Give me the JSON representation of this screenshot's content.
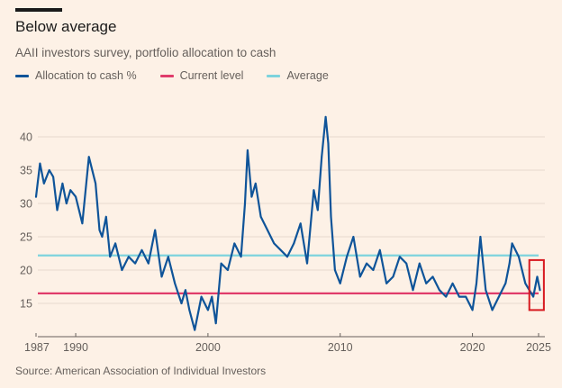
{
  "title": "Below average",
  "subtitle": "AAII investors survey, portfolio allocation to cash",
  "legend": [
    {
      "label": "Allocation to cash %",
      "color": "#0f5499"
    },
    {
      "label": "Current level",
      "color": "#e03c6b"
    },
    {
      "label": "Average",
      "color": "#7dd3dd"
    }
  ],
  "source": "Source: American Association of Individual Investors",
  "chart_data": {
    "type": "line",
    "title": "Below average",
    "xlabel": "",
    "ylabel": "",
    "xlim": [
      1987,
      2025
    ],
    "ylim": [
      10,
      45
    ],
    "yticks": [
      15,
      20,
      25,
      30,
      35,
      40
    ],
    "xticks": [
      {
        "value": 1987,
        "label": "1987"
      },
      {
        "value": 1990,
        "label": "1990"
      },
      {
        "value": 2000,
        "label": "2000"
      },
      {
        "value": 2010,
        "label": "2010"
      },
      {
        "value": 2020,
        "label": "2020"
      },
      {
        "value": 2025,
        "label": "2025"
      }
    ],
    "reference_lines": [
      {
        "name": "Current level",
        "value": 16.5,
        "color": "#e03c6b"
      },
      {
        "name": "Average",
        "value": 22.2,
        "color": "#7dd3dd"
      }
    ],
    "highlight_box": {
      "x_start": 2024.3,
      "x_end": 2025.4,
      "y_start": 14,
      "y_end": 21.5,
      "color": "#d71920"
    },
    "series": [
      {
        "name": "Allocation to cash %",
        "color": "#0f5499",
        "x": [
          1987.0,
          1987.3,
          1987.6,
          1988.0,
          1988.3,
          1988.6,
          1989.0,
          1989.3,
          1989.6,
          1990.0,
          1990.5,
          1991.0,
          1991.5,
          1991.8,
          1992.0,
          1992.3,
          1992.6,
          1993.0,
          1993.5,
          1994.0,
          1994.5,
          1995.0,
          1995.5,
          1996.0,
          1996.5,
          1997.0,
          1997.5,
          1998.0,
          1998.3,
          1998.6,
          1999.0,
          1999.5,
          2000.0,
          2000.3,
          2000.6,
          2001.0,
          2001.5,
          2002.0,
          2002.5,
          2002.8,
          2003.0,
          2003.3,
          2003.6,
          2004.0,
          2004.5,
          2005.0,
          2005.5,
          2006.0,
          2006.5,
          2007.0,
          2007.5,
          2008.0,
          2008.3,
          2008.6,
          2008.9,
          2009.1,
          2009.3,
          2009.6,
          2010.0,
          2010.5,
          2011.0,
          2011.5,
          2012.0,
          2012.5,
          2013.0,
          2013.5,
          2014.0,
          2014.5,
          2015.0,
          2015.5,
          2016.0,
          2016.5,
          2017.0,
          2017.5,
          2018.0,
          2018.5,
          2019.0,
          2019.5,
          2020.0,
          2020.3,
          2020.6,
          2021.0,
          2021.5,
          2022.0,
          2022.5,
          2022.8,
          2023.0,
          2023.5,
          2024.0,
          2024.3,
          2024.6,
          2024.9,
          2025.1
        ],
        "values": [
          31,
          36,
          33,
          35,
          34,
          29,
          33,
          30,
          32,
          31,
          27,
          37,
          33,
          26,
          25,
          28,
          22,
          24,
          20,
          22,
          21,
          23,
          21,
          26,
          19,
          22,
          18,
          15,
          17,
          14,
          11,
          16,
          14,
          16,
          12,
          21,
          20,
          24,
          22,
          30,
          38,
          31,
          33,
          28,
          26,
          24,
          23,
          22,
          24,
          27,
          21,
          32,
          29,
          37,
          43,
          39,
          28,
          20,
          18,
          22,
          25,
          19,
          21,
          20,
          23,
          18,
          19,
          22,
          21,
          17,
          21,
          18,
          19,
          17,
          16,
          18,
          16,
          16,
          14,
          18,
          25,
          17,
          14,
          16,
          18,
          21,
          24,
          22,
          18,
          17,
          16,
          19,
          17
        ]
      }
    ]
  }
}
